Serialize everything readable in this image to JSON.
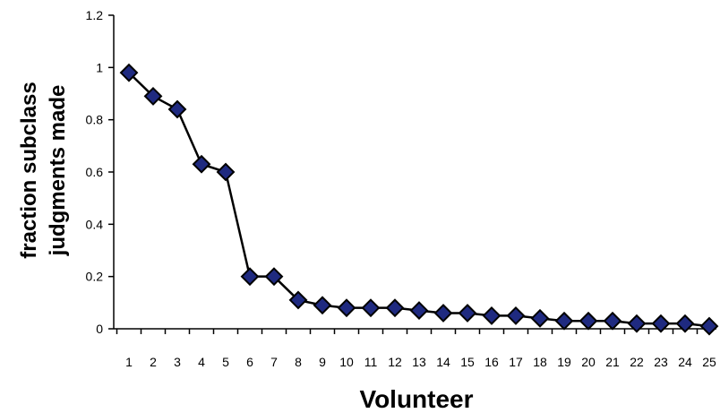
{
  "chart_data": {
    "type": "line",
    "title": "",
    "xlabel": "Volunteer",
    "ylabel_lines": [
      "fraction subclass",
      "judgments made"
    ],
    "categories": [
      "1",
      "2",
      "3",
      "4",
      "5",
      "6",
      "7",
      "8",
      "9",
      "10",
      "11",
      "12",
      "13",
      "14",
      "15",
      "16",
      "17",
      "18",
      "19",
      "20",
      "21",
      "22",
      "23",
      "24",
      "25"
    ],
    "series": [
      {
        "values": [
          0.98,
          0.89,
          0.84,
          0.63,
          0.6,
          0.2,
          0.2,
          0.11,
          0.09,
          0.08,
          0.08,
          0.08,
          0.07,
          0.06,
          0.06,
          0.05,
          0.05,
          0.04,
          0.03,
          0.03,
          0.03,
          0.02,
          0.02,
          0.02,
          0.01
        ]
      }
    ],
    "ylim": [
      0,
      1.2
    ],
    "yticks": [
      "0",
      "0.2",
      "0.4",
      "0.6",
      "0.8",
      "1",
      "1.2"
    ],
    "yticks_values": [
      0,
      0.2,
      0.4,
      0.6,
      0.8,
      1.0,
      1.2
    ],
    "grid": false,
    "legend": "none",
    "colors": {
      "marker_fill": "#1f2a80",
      "marker_stroke": "#000000",
      "line": "#000000",
      "axis": "#000000"
    }
  }
}
